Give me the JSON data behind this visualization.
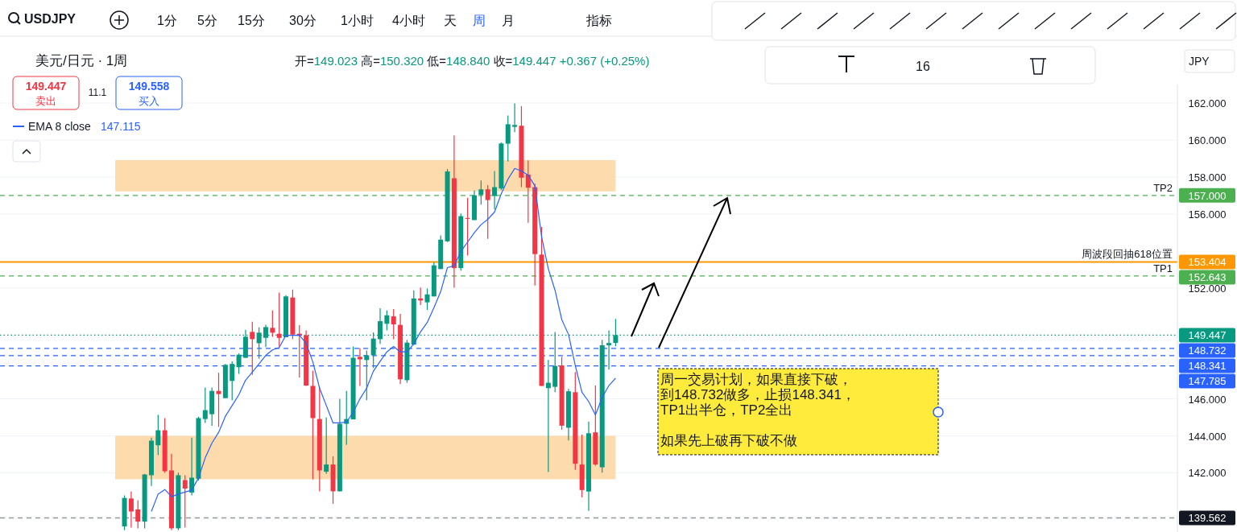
{
  "chart_data": {
    "type": "candlestick",
    "title": "USDJPY",
    "subtitle": "美元/日元 · 1周",
    "categories": [
      null,
      null,
      null,
      null,
      null,
      null,
      null,
      null,
      null,
      null,
      null,
      null,
      null,
      null,
      null,
      null,
      null,
      null,
      null,
      null,
      null,
      null,
      null,
      null,
      null,
      null,
      null,
      null,
      null,
      null,
      null,
      null,
      null,
      null,
      null,
      null,
      null,
      null,
      null,
      null,
      null,
      null,
      null,
      null,
      null,
      null,
      null,
      null,
      null,
      null,
      null,
      null,
      null,
      null,
      null,
      null,
      null,
      null,
      null,
      null,
      null,
      null,
      null,
      null,
      null,
      null,
      null,
      null,
      null,
      null,
      null,
      null,
      null,
      null,
      null,
      null,
      null,
      null,
      null,
      null,
      null,
      null,
      null,
      null,
      null,
      null,
      null,
      null,
      null,
      null,
      null,
      null,
      null,
      null,
      null,
      null,
      null,
      null,
      null,
      null,
      null,
      null,
      null,
      null,
      null,
      null,
      null,
      null,
      null,
      null,
      null,
      null,
      null,
      null,
      null,
      null,
      null,
      null,
      null,
      null,
      null,
      null,
      null,
      null,
      null,
      null,
      null,
      null,
      null,
      null,
      null,
      null,
      null,
      null,
      null,
      null,
      null,
      null,
      null,
      null,
      null,
      null,
      null,
      null,
      null,
      null,
      null,
      null,
      null,
      null,
      null,
      null,
      null,
      null,
      null,
      null,
      null,
      null,
      null,
      null,
      null,
      null,
      null,
      null,
      null,
      null,
      null,
      null,
      null,
      null,
      null,
      null,
      null,
      null,
      null
    ],
    "ohlc": [
      null,
      null,
      null,
      null,
      null,
      null,
      null,
      null,
      null,
      null,
      null,
      null,
      null,
      null,
      null,
      null,
      null,
      null,
      [
        139.1,
        140.78,
        138.9,
        140.64
      ],
      [
        140.61,
        140.99,
        139.04,
        139.91
      ],
      [
        140.02,
        140.52,
        139.0,
        139.36
      ],
      [
        139.36,
        141.94,
        139.0,
        141.91
      ],
      [
        141.87,
        143.9,
        141.29,
        143.74
      ],
      [
        143.49,
        145.13,
        142.96,
        144.3
      ],
      [
        144.3,
        144.96,
        142.0,
        142.09
      ],
      [
        142.13,
        143.03,
        138.9,
        139.0
      ],
      [
        139.0,
        142.01,
        138.9,
        141.87
      ],
      [
        141.61,
        141.87,
        139.04,
        141.15
      ],
      [
        140.93,
        143.9,
        140.78,
        141.74
      ],
      [
        141.68,
        145.03,
        141.58,
        144.96
      ],
      [
        144.91,
        146.61,
        144.7,
        145.39
      ],
      [
        145.17,
        146.61,
        144.55,
        146.43
      ],
      [
        146.43,
        147.41,
        144.48,
        146.26
      ],
      [
        146.04,
        147.89,
        146.04,
        147.84
      ],
      [
        146.97,
        148.03,
        145.93,
        147.89
      ],
      [
        147.71,
        148.46,
        147.35,
        148.39
      ],
      [
        148.22,
        149.74,
        148.22,
        149.36
      ],
      [
        149.62,
        150.17,
        147.3,
        149.23
      ],
      [
        149.01,
        149.87,
        148.17,
        149.58
      ],
      [
        149.3,
        150.01,
        148.8,
        149.88
      ],
      [
        149.84,
        150.78,
        149.36,
        149.58
      ],
      [
        149.52,
        151.75,
        148.83,
        149.3
      ],
      [
        149.33,
        151.61,
        149.33,
        151.54
      ],
      [
        151.48,
        151.91,
        149.23,
        149.48
      ],
      [
        149.52,
        149.99,
        147.16,
        149.41
      ],
      [
        149.44,
        149.7,
        146.7,
        146.72
      ],
      [
        146.7,
        147.52,
        141.65,
        144.96
      ],
      [
        144.91,
        146.61,
        141.0,
        142.13
      ],
      [
        142.06,
        144.99,
        141.94,
        142.45
      ],
      [
        142.45,
        142.89,
        140.32,
        141.0
      ],
      [
        141.0,
        146.0,
        141.0,
        144.65
      ],
      [
        144.65,
        146.43,
        143.51,
        144.91
      ],
      [
        144.89,
        148.83,
        144.89,
        148.22
      ],
      [
        148.27,
        148.75,
        146.7,
        148.14
      ],
      [
        148.1,
        148.61,
        145.93,
        148.35
      ],
      [
        148.36,
        149.59,
        147.67,
        149.26
      ],
      [
        149.23,
        150.9,
        148.97,
        150.2
      ],
      [
        150.06,
        150.78,
        149.7,
        150.52
      ],
      [
        150.46,
        150.86,
        149.22,
        150.03
      ],
      [
        150.0,
        150.59,
        146.8,
        147.06
      ],
      [
        147.01,
        149.19,
        146.87,
        149.04
      ],
      [
        148.93,
        151.87,
        148.93,
        151.43
      ],
      [
        151.43,
        152.02,
        151.07,
        151.32
      ],
      [
        151.22,
        151.97,
        150.81,
        151.65
      ],
      [
        151.54,
        153.39,
        151.54,
        153.22
      ],
      [
        153.02,
        154.84,
        153.02,
        154.61
      ],
      [
        154.52,
        158.43,
        154.48,
        158.3
      ],
      [
        157.93,
        160.25,
        152.01,
        153.07
      ],
      [
        153.07,
        156.03,
        152.93,
        155.88
      ],
      [
        155.78,
        156.87,
        153.75,
        155.75
      ],
      [
        155.67,
        157.27,
        155.67,
        157.01
      ],
      [
        157.04,
        157.81,
        156.5,
        157.33
      ],
      [
        157.33,
        157.56,
        154.65,
        156.75
      ],
      [
        156.97,
        158.32,
        156.25,
        157.45
      ],
      [
        157.38,
        159.87,
        157.3,
        159.81
      ],
      [
        159.8,
        161.32,
        158.83,
        160.85
      ],
      [
        160.71,
        161.98,
        160.42,
        160.81
      ],
      [
        160.77,
        161.83,
        157.45,
        157.96
      ],
      [
        158.13,
        158.9,
        155.52,
        157.42
      ],
      [
        157.45,
        157.64,
        152.13,
        153.83
      ],
      [
        153.8,
        155.3,
        146.7,
        146.7
      ],
      [
        146.58,
        148.1,
        142.04,
        146.87
      ],
      [
        146.65,
        149.62,
        146.36,
        147.78
      ],
      [
        147.81,
        148.27,
        144.33,
        144.55
      ],
      [
        144.44,
        146.54,
        143.75,
        146.41
      ],
      [
        146.36,
        147.45,
        142.16,
        142.49
      ],
      [
        142.45,
        144.07,
        140.67,
        141.07
      ],
      [
        140.99,
        144.77,
        139.94,
        144.14
      ],
      [
        144.19,
        146.72,
        142.38,
        142.45
      ],
      [
        142.3,
        149.19,
        142.01,
        148.9
      ],
      [
        148.9,
        149.7,
        147.59,
        149.02
      ],
      [
        149.023,
        150.32,
        148.84,
        149.447
      ],
      null,
      null,
      null,
      null,
      null,
      null,
      null,
      null,
      null,
      null,
      null,
      null,
      null,
      null,
      null,
      null,
      null,
      null,
      null,
      null,
      null,
      null,
      null,
      null,
      null,
      null,
      null,
      null,
      null,
      null,
      null,
      null,
      null,
      null,
      null,
      null,
      null,
      null,
      null,
      null,
      null,
      null,
      null,
      null,
      null,
      null,
      null,
      null,
      null,
      null,
      null,
      null,
      null,
      null,
      null,
      null,
      null,
      null,
      null,
      null,
      null,
      null,
      null,
      null,
      null,
      null,
      null,
      null,
      null,
      null,
      null,
      null,
      null,
      null,
      null,
      null,
      null,
      null,
      null,
      null,
      null,
      null,
      null
    ],
    "series": [
      {
        "name": "EMA 8 close",
        "type": "line",
        "color": "#2962ff",
        "values": [
          null,
          null,
          null,
          null,
          null,
          null,
          null,
          null,
          null,
          null,
          null,
          null,
          null,
          null,
          null,
          null,
          null,
          null,
          null,
          null,
          null,
          null,
          139.91,
          140.85,
          141.1,
          140.71,
          140.85,
          140.96,
          141.07,
          141.72,
          142.81,
          143.61,
          144.19,
          145.06,
          145.64,
          146.22,
          147.01,
          147.45,
          147.89,
          148.35,
          148.65,
          148.78,
          149.44,
          149.44,
          149.45,
          149.0,
          147.99,
          146.58,
          145.64,
          144.7,
          144.7,
          144.74,
          145.28,
          146.0,
          146.58,
          147.5,
          148.03,
          148.54,
          148.83,
          148.54,
          148.54,
          148.97,
          149.62,
          150.13,
          150.93,
          151.8,
          153.1,
          153.2,
          153.97,
          154.48,
          154.99,
          155.42,
          155.71,
          156.1,
          157.09,
          157.88,
          158.46,
          158.32,
          158.1,
          157.52,
          154.77,
          153.03,
          151.87,
          150.28,
          149.48,
          147.81,
          146.36,
          145.85,
          145.13,
          146.07,
          146.72,
          147.12,
          null,
          null,
          null,
          null,
          null,
          null,
          null,
          null,
          null,
          null,
          null,
          null,
          null,
          null,
          null,
          null,
          null,
          null,
          null,
          null,
          null,
          null,
          null,
          null,
          null,
          null,
          null,
          null,
          null,
          null,
          null,
          null,
          null,
          null,
          null,
          null,
          null,
          null,
          null,
          null,
          null,
          null,
          null,
          null,
          null,
          null,
          null,
          null,
          null,
          null,
          null,
          null,
          null,
          null,
          null,
          null,
          null,
          null,
          null,
          null,
          null,
          null,
          null,
          null,
          null,
          null,
          null,
          null,
          null,
          null,
          null,
          null,
          null,
          null,
          null,
          null,
          null,
          null,
          null,
          null,
          null,
          null,
          null
        ]
      }
    ],
    "ylim": [
      138.8,
      163.0
    ],
    "yticks": [
      {
        "value": 142,
        "label": "142.000"
      },
      {
        "value": 144,
        "label": "144.000"
      },
      {
        "value": 146,
        "label": "146.000"
      },
      {
        "value": 152,
        "label": "152.000"
      },
      {
        "value": 156,
        "label": "156.000"
      },
      {
        "value": 158,
        "label": "158.000"
      },
      {
        "value": 160,
        "label": "160.000"
      },
      {
        "value": 162,
        "label": "162.000"
      }
    ],
    "bands": [
      {
        "axis": "y",
        "from": 157.22,
        "to": 158.91,
        "color": "#fdd59e"
      },
      {
        "axis": "y",
        "from": 141.65,
        "to": 144.0,
        "color": "#fdd59e"
      }
    ],
    "ref_lines": [
      {
        "axis": "y",
        "value": 157.0,
        "label": "157.000",
        "color": "#4caf50",
        "line_style": "dashed"
      },
      {
        "axis": "y",
        "value": 153.404,
        "label": "153.404",
        "color": "#ff9800",
        "line_style": "solid"
      },
      {
        "axis": "y",
        "value": 152.643,
        "label": "152.643",
        "color": "#4caf50",
        "line_style": "dashed"
      },
      {
        "axis": "y",
        "value": 149.447,
        "label": "149.447",
        "color": "#089981",
        "line_style": "dotted"
      },
      {
        "axis": "y",
        "value": 148.732,
        "label": "148.732",
        "color": "#2962ff",
        "line_style": "dashed"
      },
      {
        "axis": "y",
        "value": 148.341,
        "label": "148.341",
        "color": "#2962ff",
        "line_style": "dashed"
      },
      {
        "axis": "y",
        "value": 147.785,
        "label": "147.785",
        "color": "#2962ff",
        "line_style": "dashed"
      },
      {
        "axis": "y",
        "value": 139.562,
        "label": "139.562",
        "color": "#9598a1",
        "line_style": "dashed"
      }
    ],
    "annotations": [
      "开=149.023 高=150.320 低=148.840 收=149.447 +0.367 (+0.25%)",
      "149.447\n卖出",
      "11.1",
      "149.558\n买入",
      "周一交易计划，如果直接下破，",
      "到148.732做多，止损148.341，",
      "TP1出半仓，TP2全出",
      "如果先上破再下破不做",
      "1分",
      "5分",
      "15分",
      "30分",
      "1小时",
      "4小时",
      "天",
      "周",
      "月",
      "指标",
      "JPY",
      "16",
      "147.115",
      {
        "text": "TP2",
        "y": 157.0
      },
      {
        "text": "周波段回抽618位置",
        "y": 153.404
      },
      {
        "text": "TP1",
        "y": 152.643
      }
    ],
    "grid": "y",
    "legend": "top left",
    "tick_labels": "y"
  }
}
